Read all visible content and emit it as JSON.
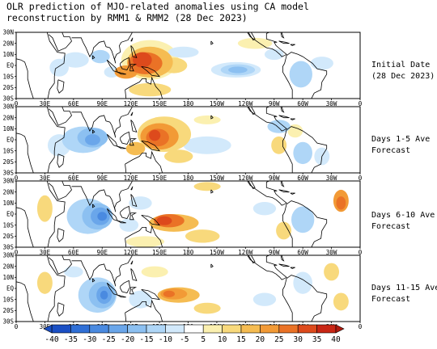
{
  "title": {
    "line1": "OLR prediction of MJO-related anomalies using CA model",
    "line2": "reconstruction by RMM1 & RMM2 (28 Dec 2023)"
  },
  "panels": [
    {
      "line1": "Initial Date",
      "line2": "(28 Dec 2023)"
    },
    {
      "line1": "Days 1-5 Ave",
      "line2": "Forecast"
    },
    {
      "line1": "Days 6-10 Ave",
      "line2": "Forecast"
    },
    {
      "line1": "Days 11-15 Ave",
      "line2": "Forecast"
    }
  ],
  "lat_ticks": [
    "30N",
    "20N",
    "10N",
    "EQ",
    "10S",
    "20S",
    "30S"
  ],
  "lon_ticks": [
    "0",
    "30E",
    "60E",
    "90E",
    "120E",
    "150E",
    "180",
    "150W",
    "120W",
    "90W",
    "60W",
    "30W",
    "0"
  ],
  "colorbar": {
    "labels": [
      "-40",
      "-35",
      "-30",
      "-25",
      "-20",
      "-15",
      "-10",
      "-5",
      "5",
      "10",
      "15",
      "20",
      "25",
      "30",
      "35",
      "40"
    ],
    "colors": [
      "#1a4fc4",
      "#2f6fd6",
      "#4a8ae0",
      "#6aa6ea",
      "#8cc0f1",
      "#afd6f7",
      "#d2e9fb",
      "#ffffff",
      "#fbf0b0",
      "#f8d97c",
      "#f5bc52",
      "#f29a36",
      "#ea7226",
      "#dd4a1c",
      "#c82614"
    ]
  },
  "colors": {
    "land_outline": "#000000",
    "frame": "#000000"
  }
}
